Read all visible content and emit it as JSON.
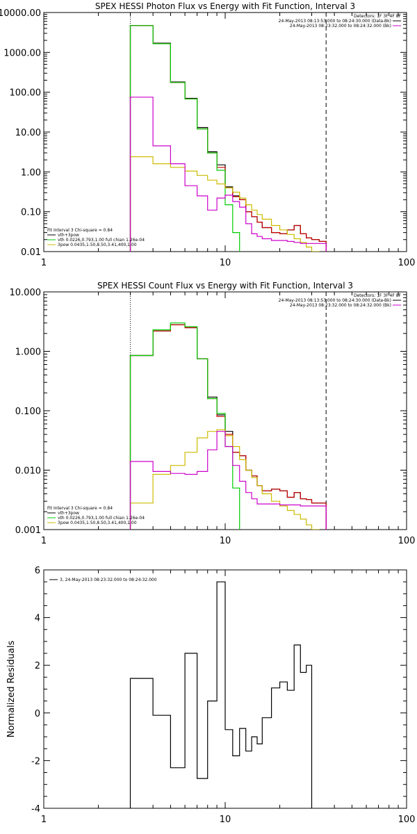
{
  "chart_data": [
    {
      "type": "line",
      "title": "SPEX HESSI Photon Flux vs Energy with Fit Function, Interval 3",
      "xscale": "log",
      "yscale": "log",
      "xlim": [
        1,
        100
      ],
      "ylim": [
        0.01,
        10000
      ],
      "x_tick_labels": [
        "1",
        "10",
        "100"
      ],
      "y_tick_labels": [
        "0.01",
        "0.10",
        "1.00",
        "10.00",
        "100.00",
        "1000.00",
        "10000.00"
      ],
      "x_edges": [
        3,
        4,
        5,
        6,
        7,
        8,
        9,
        10,
        11,
        12,
        13,
        14,
        15,
        16,
        18,
        20,
        22,
        24,
        26,
        28,
        30,
        33,
        36
      ],
      "series": [
        {
          "name": "vth+3pow",
          "color": "#000000",
          "values": [
            4700,
            1700,
            180,
            70,
            13,
            3.2,
            1.5,
            0.42,
            0.25,
            0.2,
            0.1,
            0.075,
            0.055,
            0.04,
            0.03,
            0.028,
            0.035,
            0.045,
            0.028,
            0.022,
            0.02,
            0.018
          ]
        },
        {
          "name": "",
          "color": "#cc0000",
          "values": [
            4700,
            1650,
            175,
            68,
            12,
            3,
            1.3,
            0.4,
            0.24,
            0.2,
            0.1,
            0.075,
            0.055,
            0.04,
            0.03,
            0.028,
            0.035,
            0.045,
            0.028,
            0.022,
            0.02,
            0.018
          ]
        },
        {
          "name": "vth 0.0226,0.793,1.00  full chian 1.26e-04",
          "color": "#00cc00",
          "values": [
            4700,
            1650,
            175,
            68,
            12,
            3,
            1.1,
            0.15,
            0.03,
            0.005
          ]
        },
        {
          "name": "3pow 0.0435,1.50,8.50,3.41,400,1.00",
          "color": "#ccbb00",
          "values": [
            2.4,
            1.6,
            1.3,
            1.05,
            0.82,
            0.62,
            0.5,
            0.4,
            0.31,
            0.22,
            0.15,
            0.11,
            0.085,
            0.065,
            0.045,
            0.035,
            0.027,
            0.021,
            0.017,
            0.013,
            0.01,
            0.008
          ]
        },
        {
          "name": "",
          "color": "#cc00cc",
          "values": [
            75,
            4.5,
            1.6,
            0.45,
            0.25,
            0.11,
            0.22,
            0.26,
            0.18,
            0.13,
            0.05,
            0.028,
            0.024,
            0.021,
            0.019,
            0.019,
            0.018,
            0.017,
            0.016,
            0.016,
            0.016,
            0.016
          ]
        }
      ],
      "legend": {
        "header": "Detectors: 1F 3F 4F 8F",
        "entries": [
          {
            "text": "24-May-2013 08:13:53.000 to 08:24:30.000 (Data-Bk)",
            "color": "#000000"
          },
          {
            "text": "24-May-2013 08:23:32.000 to 08:24:32.000 (Bk)",
            "color": "#cc00cc"
          }
        ],
        "placement": "top-right"
      },
      "fit_legend": {
        "header": "Fit Interval 3   Chi-square = 0.84",
        "placement": "bottom-left"
      },
      "vlines": [
        {
          "x": 3,
          "style": "dotted"
        },
        {
          "x": 36,
          "style": "dashed"
        }
      ]
    },
    {
      "type": "line",
      "title": "SPEX HESSI Count Flux vs Energy with Fit Function, Interval 3",
      "xscale": "log",
      "yscale": "log",
      "xlim": [
        1,
        100
      ],
      "ylim": [
        0.001,
        10
      ],
      "x_tick_labels": [
        "1",
        "10",
        "100"
      ],
      "y_tick_labels": [
        "0.001",
        "0.010",
        "0.100",
        "1.000",
        "10.000"
      ],
      "x_edges": [
        3,
        4,
        5,
        6,
        7,
        8,
        9,
        10,
        11,
        12,
        13,
        14,
        15,
        16,
        18,
        20,
        22,
        24,
        26,
        28,
        30,
        33,
        36
      ],
      "series": [
        {
          "name": "vth+3pow",
          "color": "#000000",
          "values": [
            0.85,
            2.2,
            2.8,
            2.5,
            0.75,
            0.17,
            0.085,
            0.045,
            0.02,
            0.0175,
            0.01,
            0.008,
            0.0055,
            0.0045,
            0.0048,
            0.0045,
            0.0035,
            0.0042,
            0.0033,
            0.0032,
            0.0028,
            0.0028
          ]
        },
        {
          "name": "",
          "color": "#cc0000",
          "values": [
            0.85,
            2.2,
            2.8,
            2.5,
            0.75,
            0.16,
            0.08,
            0.04,
            0.02,
            0.0175,
            0.01,
            0.008,
            0.0055,
            0.0045,
            0.0048,
            0.0045,
            0.0035,
            0.0042,
            0.0033,
            0.0032,
            0.0028,
            0.0028
          ]
        },
        {
          "name": "vth 0.0226,0.793,1.00  full chian 1.26e-04",
          "color": "#00cc00",
          "values": [
            0.85,
            2.3,
            3.0,
            2.6,
            0.75,
            0.16,
            0.09,
            0.025,
            0.005,
            0.0009
          ]
        },
        {
          "name": "3pow 0.0435,1.50,8.50,3.41,400,1.00",
          "color": "#ccbb00",
          "values": [
            0.0028,
            0.0085,
            0.012,
            0.02,
            0.035,
            0.045,
            0.048,
            0.038,
            0.025,
            0.015,
            0.01,
            0.0075,
            0.0055,
            0.004,
            0.003,
            0.0025,
            0.0021,
            0.0018,
            0.0015,
            0.0012,
            0.001,
            0.0009
          ]
        },
        {
          "name": "",
          "color": "#cc00cc",
          "values": [
            0.014,
            0.0095,
            0.0088,
            0.0085,
            0.0095,
            0.022,
            0.045,
            0.025,
            0.012,
            0.0065,
            0.0042,
            0.0033,
            0.0027,
            0.0027,
            0.0027,
            0.0026,
            0.0026,
            0.0026,
            0.0025,
            0.0025,
            0.0025,
            0.0025
          ]
        }
      ],
      "legend": {
        "header": "Detectors: 1F 3F 4F 8F",
        "entries": [
          {
            "text": "24-May-2013 08:13:53.000 to 08:24:30.000 (Data-Bk)",
            "color": "#000000"
          },
          {
            "text": "24-May-2013 08:23:32.000 to 08:24:32.000 (Bk)",
            "color": "#cc00cc"
          }
        ],
        "placement": "top-right"
      },
      "fit_legend": {
        "header": "Fit Interval 3   Chi-square = 0.84",
        "placement": "bottom-left"
      },
      "vlines": [
        {
          "x": 3,
          "style": "dotted"
        },
        {
          "x": 36,
          "style": "dashed"
        }
      ]
    },
    {
      "type": "line",
      "title": "",
      "ylabel": "Normalized Residuals",
      "xscale": "log",
      "yscale": "linear",
      "xlim": [
        1,
        100
      ],
      "ylim": [
        -4,
        6
      ],
      "x_tick_labels": [
        "1",
        "10",
        "100"
      ],
      "y_tick_labels": [
        "-4",
        "-2",
        "0",
        "2",
        "4",
        "6"
      ],
      "x_edges": [
        3,
        4,
        5,
        6,
        7,
        8,
        9,
        10,
        11,
        12,
        13,
        14,
        15,
        16,
        18,
        20,
        22,
        24,
        26,
        28,
        30,
        33,
        36
      ],
      "series": [
        {
          "name": "3, 24-May-2013 08:23:32.000 to 08:24:32.000",
          "color": "#000000",
          "values": [
            1.45,
            -0.1,
            -2.3,
            2.5,
            -2.75,
            0.5,
            5.5,
            -0.7,
            -1.8,
            -0.65,
            -1.6,
            -1.0,
            -1.3,
            -0.2,
            1.05,
            1.3,
            0.95,
            2.85,
            1.7,
            2.0
          ]
        }
      ],
      "legend": {
        "placement": "top-left"
      }
    }
  ]
}
